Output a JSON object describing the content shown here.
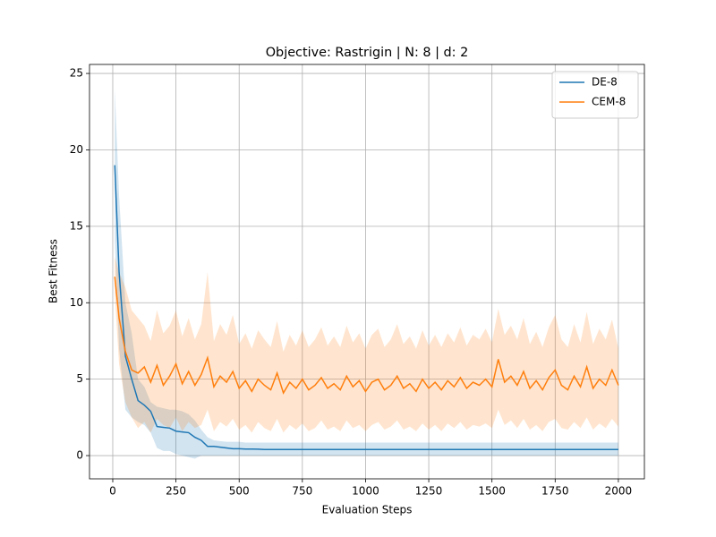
{
  "chart_data": {
    "type": "line",
    "title": "Objective: Rastrigin | N: 8 | d: 2",
    "xlabel": "Evaluation Steps",
    "ylabel": "Best Fitness",
    "x": [
      8,
      25,
      50,
      75,
      100,
      125,
      150,
      175,
      200,
      225,
      250,
      275,
      300,
      325,
      350,
      375,
      400,
      425,
      450,
      475,
      500,
      525,
      550,
      575,
      600,
      625,
      650,
      675,
      700,
      725,
      750,
      775,
      800,
      825,
      850,
      875,
      900,
      925,
      950,
      975,
      1000,
      1025,
      1050,
      1075,
      1100,
      1125,
      1150,
      1175,
      1200,
      1225,
      1250,
      1275,
      1300,
      1325,
      1350,
      1375,
      1400,
      1425,
      1450,
      1475,
      1500,
      1525,
      1550,
      1575,
      1600,
      1625,
      1650,
      1675,
      1700,
      1725,
      1750,
      1775,
      1800,
      1825,
      1850,
      1875,
      1900,
      1925,
      1950,
      1975,
      2000
    ],
    "series": [
      {
        "name": "DE-8",
        "color": "#1f77b4",
        "values": [
          19.0,
          12.0,
          6.5,
          5.0,
          3.6,
          3.3,
          2.9,
          1.9,
          1.85,
          1.8,
          1.6,
          1.55,
          1.5,
          1.2,
          1.0,
          0.6,
          0.6,
          0.55,
          0.5,
          0.45,
          0.45,
          0.43,
          0.43,
          0.42,
          0.4,
          0.4,
          0.4,
          0.4,
          0.4,
          0.4,
          0.4,
          0.4,
          0.4,
          0.4,
          0.4,
          0.4,
          0.4,
          0.4,
          0.4,
          0.4,
          0.4,
          0.4,
          0.4,
          0.4,
          0.4,
          0.4,
          0.4,
          0.4,
          0.4,
          0.4,
          0.4,
          0.4,
          0.4,
          0.4,
          0.4,
          0.4,
          0.4,
          0.4,
          0.4,
          0.4,
          0.4,
          0.4,
          0.4,
          0.4,
          0.4,
          0.4,
          0.4,
          0.4,
          0.4,
          0.4,
          0.4,
          0.4,
          0.4,
          0.4,
          0.4,
          0.4,
          0.4,
          0.4,
          0.4,
          0.4,
          0.4
        ],
        "lower": [
          14,
          7,
          3,
          2.5,
          2.2,
          2.0,
          1.5,
          0.5,
          0.3,
          0.3,
          0.1,
          0,
          -0.1,
          -0.2,
          0,
          0,
          0,
          0,
          0,
          0,
          0,
          0,
          0,
          0,
          0,
          0,
          0,
          0,
          0,
          0,
          0,
          0,
          0,
          0,
          0,
          0,
          0,
          0,
          0,
          0,
          0,
          0,
          0,
          0,
          0,
          0,
          0,
          0,
          0,
          0,
          0,
          0,
          0,
          0,
          0,
          0,
          0,
          0,
          0,
          0,
          0,
          0,
          0,
          0,
          0,
          0,
          0,
          0,
          0,
          0,
          0,
          0,
          0,
          0,
          0,
          0,
          0,
          0,
          0,
          0,
          0
        ],
        "upper": [
          24,
          17,
          10,
          8,
          5,
          4.5,
          3.5,
          3.2,
          3.1,
          3.0,
          3.0,
          2.9,
          2.7,
          2.3,
          1.7,
          1.2,
          1.0,
          0.95,
          0.9,
          0.9,
          0.9,
          0.85,
          0.85,
          0.85,
          0.85,
          0.85,
          0.85,
          0.85,
          0.85,
          0.85,
          0.85,
          0.85,
          0.85,
          0.85,
          0.85,
          0.85,
          0.85,
          0.85,
          0.85,
          0.85,
          0.85,
          0.85,
          0.85,
          0.85,
          0.85,
          0.85,
          0.85,
          0.85,
          0.85,
          0.85,
          0.85,
          0.85,
          0.85,
          0.85,
          0.85,
          0.85,
          0.85,
          0.85,
          0.85,
          0.85,
          0.85,
          0.85,
          0.85,
          0.85,
          0.85,
          0.85,
          0.85,
          0.85,
          0.85,
          0.85,
          0.85,
          0.85,
          0.85,
          0.85,
          0.85,
          0.85,
          0.85,
          0.85,
          0.85,
          0.85,
          0.85
        ]
      },
      {
        "name": "CEM-8",
        "color": "#ff7f0e",
        "values": [
          11.7,
          9.0,
          6.8,
          5.6,
          5.4,
          5.8,
          4.8,
          5.9,
          4.6,
          5.2,
          6.0,
          4.7,
          5.5,
          4.6,
          5.3,
          6.4,
          4.5,
          5.2,
          4.8,
          5.5,
          4.4,
          4.9,
          4.2,
          5.0,
          4.6,
          4.3,
          5.4,
          4.1,
          4.8,
          4.4,
          5.0,
          4.3,
          4.6,
          5.1,
          4.4,
          4.7,
          4.3,
          5.2,
          4.5,
          4.9,
          4.2,
          4.8,
          5.0,
          4.3,
          4.6,
          5.2,
          4.4,
          4.7,
          4.2,
          5.0,
          4.4,
          4.8,
          4.3,
          4.9,
          4.5,
          5.1,
          4.4,
          4.8,
          4.6,
          5.0,
          4.5,
          6.3,
          4.8,
          5.2,
          4.6,
          5.5,
          4.4,
          4.9,
          4.3,
          5.1,
          5.6,
          4.6,
          4.3,
          5.2,
          4.5,
          5.8,
          4.4,
          5.0,
          4.6,
          5.6,
          4.6
        ],
        "lower": [
          10.5,
          6.0,
          3.5,
          2.5,
          1.8,
          2.2,
          1.5,
          2.4,
          2.0,
          1.8,
          2.5,
          1.6,
          2.2,
          1.8,
          2.0,
          3.0,
          1.6,
          2.2,
          1.9,
          2.4,
          1.7,
          2.0,
          1.5,
          2.2,
          1.8,
          1.6,
          2.4,
          1.5,
          2.0,
          1.7,
          2.1,
          1.6,
          1.8,
          2.3,
          1.7,
          1.9,
          1.6,
          2.3,
          1.8,
          2.0,
          1.6,
          2.0,
          2.2,
          1.7,
          1.9,
          2.3,
          1.7,
          1.9,
          1.6,
          2.1,
          1.7,
          2.0,
          1.6,
          2.1,
          1.8,
          2.2,
          1.7,
          2.0,
          1.9,
          2.1,
          1.8,
          3.0,
          2.0,
          2.3,
          1.8,
          2.4,
          1.7,
          2.0,
          1.6,
          2.2,
          2.4,
          1.8,
          1.7,
          2.2,
          1.8,
          2.5,
          1.7,
          2.1,
          1.8,
          2.4,
          1.9
        ],
        "upper": [
          13.0,
          12.0,
          11.0,
          9.5,
          9.0,
          8.5,
          7.5,
          9.5,
          8.0,
          8.5,
          9.5,
          7.8,
          9.0,
          7.6,
          8.6,
          12.0,
          7.5,
          8.6,
          7.9,
          9.2,
          7.3,
          8.0,
          7.0,
          8.2,
          7.6,
          7.1,
          8.8,
          6.8,
          7.9,
          7.2,
          8.2,
          7.1,
          7.6,
          8.4,
          7.2,
          7.8,
          7.1,
          8.5,
          7.4,
          8.0,
          7.0,
          7.9,
          8.3,
          7.1,
          7.6,
          8.6,
          7.3,
          7.8,
          7.0,
          8.2,
          7.2,
          7.9,
          7.1,
          8.0,
          7.4,
          8.4,
          7.2,
          7.9,
          7.6,
          8.3,
          7.4,
          9.6,
          7.9,
          8.5,
          7.6,
          9.0,
          7.3,
          8.1,
          7.1,
          8.4,
          9.2,
          7.6,
          7.1,
          8.6,
          7.4,
          9.4,
          7.3,
          8.3,
          7.6,
          8.9,
          7.0
        ]
      }
    ],
    "xlim": [
      -92,
      2103
    ],
    "ylim": [
      -1.52,
      25.59
    ],
    "xticks": [
      0,
      250,
      500,
      750,
      1000,
      1250,
      1500,
      1750,
      2000
    ],
    "yticks": [
      0,
      5,
      10,
      15,
      20,
      25
    ],
    "grid": true,
    "legend": "upper right",
    "band_opacity": 0.2
  }
}
